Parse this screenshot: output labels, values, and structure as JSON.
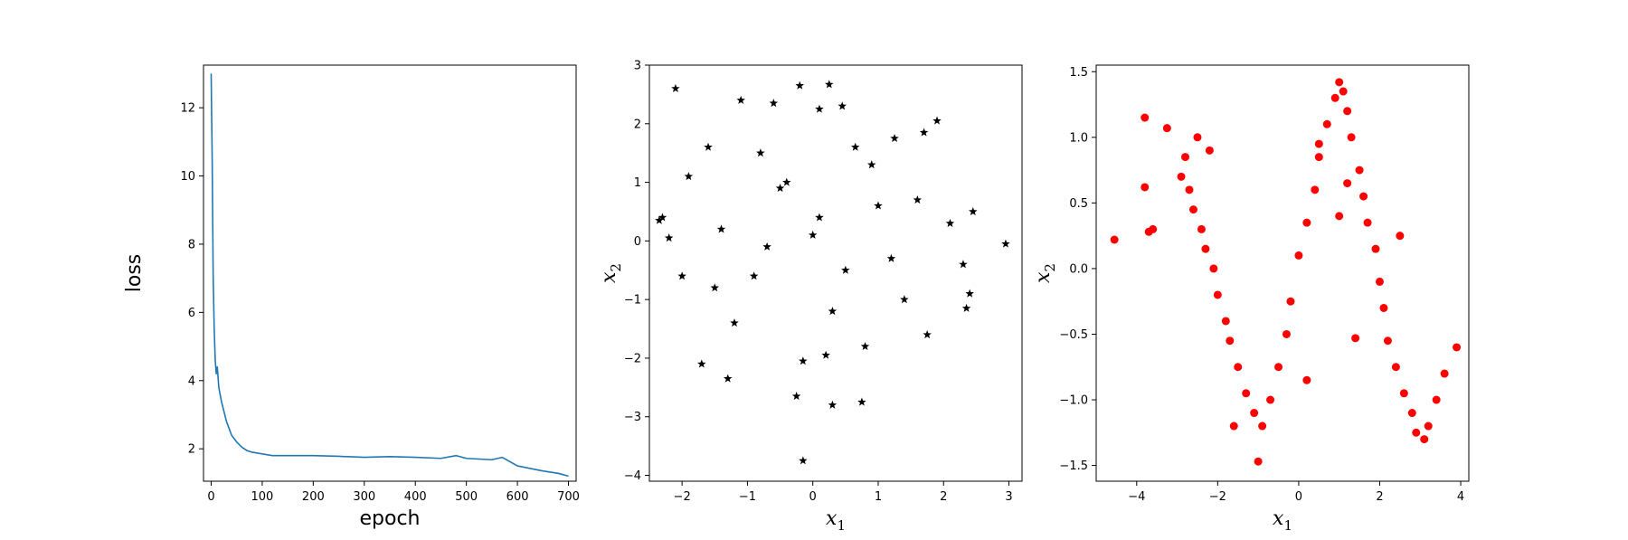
{
  "chart_data": [
    {
      "type": "line",
      "xlabel": "epoch",
      "ylabel": "loss",
      "xlim": [
        -15,
        715
      ],
      "ylim": [
        1.05,
        13.25
      ],
      "xticks": [
        0,
        100,
        200,
        300,
        400,
        500,
        600,
        700
      ],
      "yticks": [
        2,
        4,
        6,
        8,
        10,
        12
      ],
      "color": "#1f77b4",
      "series": [
        {
          "x": [
            0,
            2,
            4,
            6,
            8,
            10,
            12,
            15,
            20,
            25,
            30,
            35,
            40,
            50,
            60,
            70,
            80,
            100,
            120,
            150,
            200,
            250,
            300,
            350,
            400,
            450,
            480,
            500,
            550,
            570,
            600,
            650,
            680,
            700
          ],
          "y": [
            13.0,
            10.5,
            7.0,
            5.5,
            4.6,
            4.2,
            4.4,
            3.8,
            3.4,
            3.1,
            2.8,
            2.6,
            2.4,
            2.2,
            2.05,
            1.95,
            1.9,
            1.85,
            1.8,
            1.8,
            1.8,
            1.78,
            1.75,
            1.77,
            1.75,
            1.72,
            1.8,
            1.72,
            1.68,
            1.75,
            1.5,
            1.35,
            1.28,
            1.2
          ]
        }
      ]
    },
    {
      "type": "scatter",
      "marker": "star",
      "color": "#000000",
      "xlabel": "x",
      "xlabel_sub": "1",
      "ylabel": "x",
      "ylabel_sub": "2",
      "xlim": [
        -2.5,
        3.2
      ],
      "ylim": [
        -4.1,
        3.0
      ],
      "xticks": [
        -2,
        -1,
        0,
        1,
        2,
        3
      ],
      "yticks": [
        -4,
        -3,
        -2,
        -1,
        0,
        1,
        2,
        3
      ],
      "series": [
        {
          "x": [
            -2.1,
            -0.2,
            0.25,
            -0.6,
            0.1,
            0.45,
            1.9,
            -2.3,
            -1.1,
            -0.8,
            0.65,
            1.25,
            1.7,
            -1.6,
            -2.2,
            -2.35,
            2.45,
            2.4,
            2.95,
            -1.7,
            -1.3,
            -0.25,
            -0.15,
            0.3,
            0.75,
            -0.15,
            0.2,
            2.35,
            1.75,
            -1.9,
            -1.4,
            -0.9,
            -0.5,
            0.0,
            0.5,
            1.0,
            1.4,
            2.1,
            2.3,
            -2.0,
            -1.2,
            -0.4,
            0.8,
            1.6,
            -0.7,
            0.1,
            0.9,
            1.2,
            -1.5,
            0.3
          ],
          "y": [
            2.6,
            2.65,
            2.67,
            2.35,
            2.25,
            2.3,
            2.05,
            0.4,
            2.4,
            1.5,
            1.6,
            1.75,
            1.85,
            1.6,
            0.05,
            0.35,
            0.5,
            -0.9,
            -0.05,
            -2.1,
            -2.35,
            -2.65,
            -3.75,
            -2.8,
            -2.75,
            -2.05,
            -1.95,
            -1.15,
            -1.6,
            1.1,
            0.2,
            -0.6,
            0.9,
            0.1,
            -0.5,
            0.6,
            -1.0,
            0.3,
            -0.4,
            -0.6,
            -1.4,
            1.0,
            -1.8,
            0.7,
            -0.1,
            0.4,
            1.3,
            -0.3,
            -0.8,
            -1.2
          ]
        }
      ]
    },
    {
      "type": "scatter",
      "marker": "circle",
      "color": "#ff0000",
      "xlabel": "x",
      "xlabel_sub": "1",
      "ylabel": "x",
      "ylabel_sub": "2",
      "xlim": [
        -5.0,
        4.2
      ],
      "ylim": [
        -1.62,
        1.55
      ],
      "xticks": [
        -4,
        -2,
        0,
        2,
        4
      ],
      "yticks": [
        -1.5,
        -1.0,
        -0.5,
        0.0,
        0.5,
        1.0,
        1.5
      ],
      "series": [
        {
          "x": [
            -4.55,
            -3.8,
            -3.6,
            -3.7,
            -3.8,
            -3.25,
            -2.5,
            -2.8,
            -2.9,
            -2.7,
            -2.6,
            -2.4,
            -2.3,
            -2.1,
            -2.0,
            -1.8,
            -1.7,
            -1.5,
            -1.3,
            -1.1,
            -0.9,
            -0.7,
            -0.5,
            -0.3,
            -0.2,
            0.0,
            0.2,
            0.4,
            0.5,
            0.7,
            0.9,
            1.0,
            1.1,
            1.2,
            1.3,
            1.5,
            1.6,
            1.7,
            1.9,
            2.0,
            2.1,
            2.2,
            2.4,
            2.6,
            2.8,
            2.9,
            3.1,
            3.2,
            3.4,
            3.6,
            3.9,
            -1.0,
            0.2,
            1.0,
            1.4,
            2.5,
            -2.2,
            -1.6,
            0.5,
            1.2
          ],
          "y": [
            0.22,
            0.62,
            0.3,
            0.28,
            1.15,
            1.07,
            1.0,
            0.85,
            0.7,
            0.6,
            0.45,
            0.3,
            0.15,
            0.0,
            -0.2,
            -0.4,
            -0.55,
            -0.75,
            -0.95,
            -1.1,
            -1.2,
            -1.0,
            -0.75,
            -0.5,
            -0.25,
            0.1,
            0.35,
            0.6,
            0.85,
            1.1,
            1.3,
            1.42,
            1.35,
            1.2,
            1.0,
            0.75,
            0.55,
            0.35,
            0.15,
            -0.1,
            -0.3,
            -0.55,
            -0.75,
            -0.95,
            -1.1,
            -1.25,
            -1.3,
            -1.2,
            -1.0,
            -0.8,
            -0.6,
            -1.47,
            -0.85,
            0.4,
            -0.53,
            0.25,
            0.9,
            -1.2,
            0.95,
            0.65
          ]
        }
      ]
    }
  ]
}
